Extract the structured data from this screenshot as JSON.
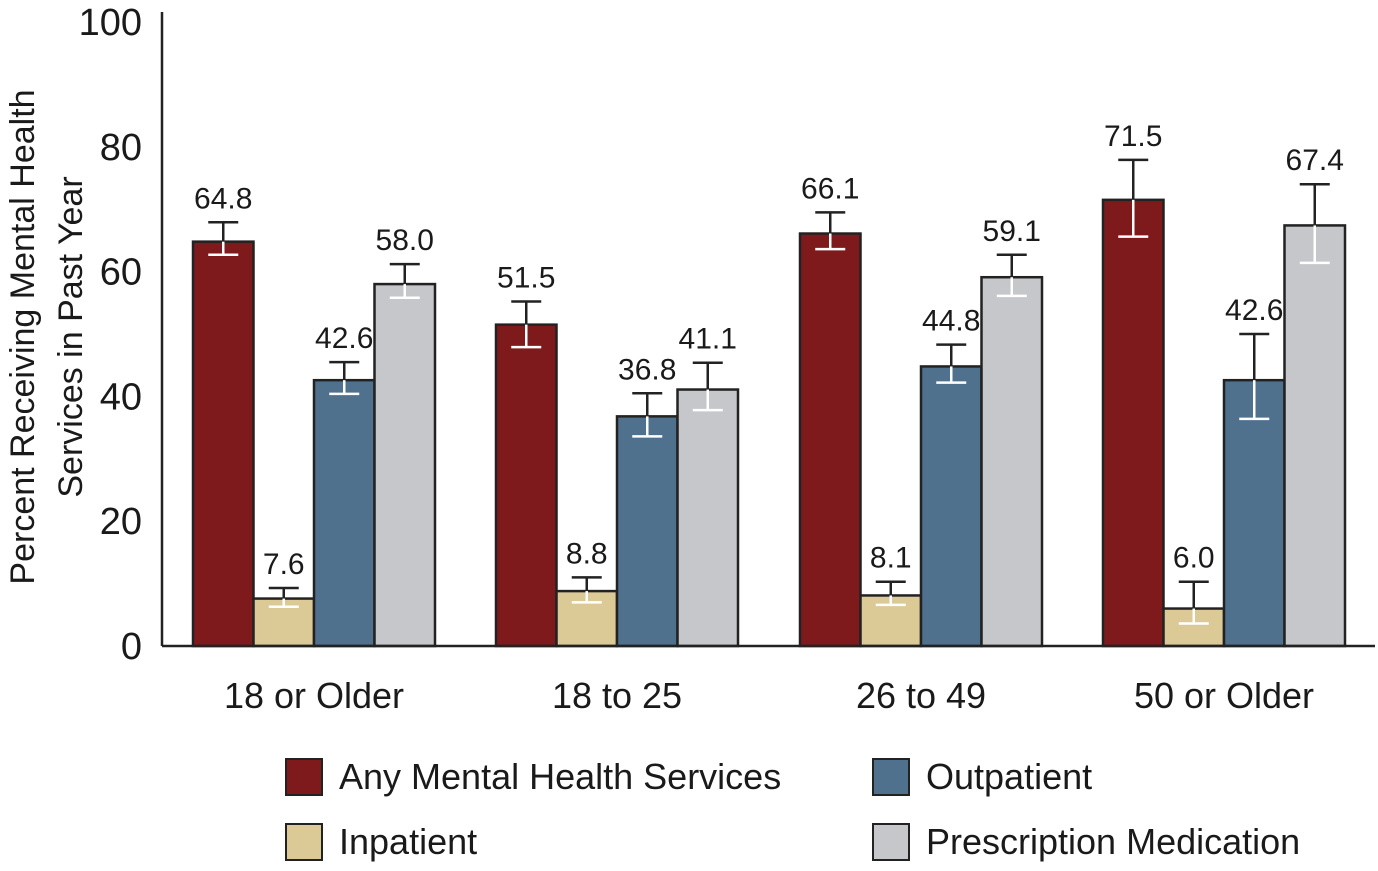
{
  "chart_data": {
    "type": "bar",
    "title": "",
    "xlabel": "",
    "ylabel_lines": [
      "Percent Receiving Mental Health",
      "Services in Past Year"
    ],
    "ylim": [
      0,
      100
    ],
    "yticks": [
      "0",
      "20",
      "40",
      "60",
      "80",
      "100"
    ],
    "categories": [
      "18 or Older",
      "18 to 25",
      "26 to 49",
      "50 or Older"
    ],
    "series": [
      {
        "name": "Any Mental Health Services",
        "color": "#7e1a1c",
        "values": [
          64.8,
          51.5,
          66.1,
          71.5
        ],
        "labels": [
          "64.8",
          "51.5",
          "66.1",
          "71.5"
        ],
        "err_low": [
          62.7,
          47.9,
          63.6,
          65.6
        ],
        "err_high": [
          67.9,
          55.2,
          69.5,
          77.9
        ]
      },
      {
        "name": "Inpatient",
        "color": "#dbc996",
        "values": [
          7.6,
          8.8,
          8.1,
          6.0
        ],
        "labels": [
          "7.6",
          "8.8",
          "8.1",
          "6.0"
        ],
        "err_low": [
          6.3,
          7.0,
          6.6,
          3.6
        ],
        "err_high": [
          9.3,
          11.0,
          10.3,
          10.3
        ]
      },
      {
        "name": "Outpatient",
        "color": "#50718e",
        "values": [
          42.6,
          36.8,
          44.8,
          42.6
        ],
        "labels": [
          "42.6",
          "36.8",
          "44.8",
          "42.6"
        ],
        "err_low": [
          40.4,
          33.6,
          42.2,
          36.4
        ],
        "err_high": [
          45.5,
          40.5,
          48.3,
          50.0
        ]
      },
      {
        "name": "Prescription Medication",
        "color": "#c6c7ca",
        "values": [
          58.0,
          41.1,
          59.1,
          67.4
        ],
        "labels": [
          "58.0",
          "41.1",
          "59.1",
          "67.4"
        ],
        "err_low": [
          55.8,
          37.8,
          56.1,
          61.4
        ],
        "err_high": [
          61.2,
          45.4,
          62.7,
          74.0
        ]
      }
    ],
    "legend": {
      "position": "bottom",
      "entries": [
        {
          "label": "Any Mental Health Services",
          "color": "#7e1a1c"
        },
        {
          "label": "Outpatient",
          "color": "#50718e"
        },
        {
          "label": "Inpatient",
          "color": "#dbc996"
        },
        {
          "label": "Prescription Medication",
          "color": "#c6c7ca"
        }
      ]
    }
  }
}
